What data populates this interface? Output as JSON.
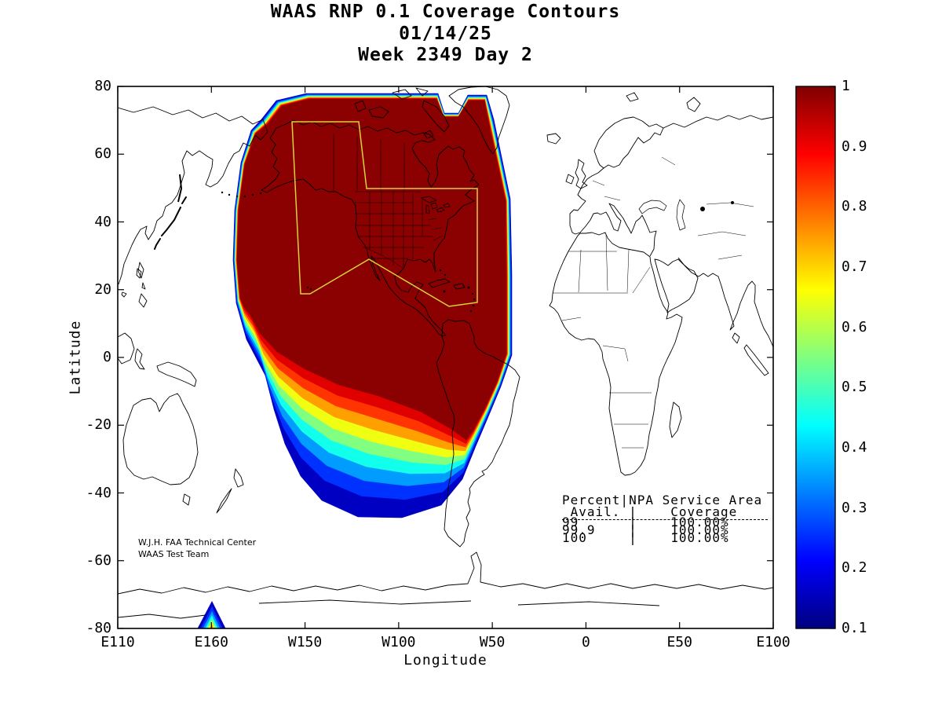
{
  "title": {
    "line1": "WAAS RNP 0.1 Coverage Contours",
    "line2": "01/14/25",
    "line3": "Week 2349 Day 2"
  },
  "annotation": {
    "line1": "W.J.H. FAA Technical Center",
    "line2": "WAAS Test Team"
  },
  "table": {
    "header1": "Percent|NPA Service Area",
    "header2": " Avail. |    Coverage",
    "rows": [
      "99      |    100.00%",
      "99.9    |    100.00%",
      "100     |    100.00%"
    ]
  },
  "chart_data": {
    "type": "heatmap",
    "subtype": "filled contour map of WAAS RNP 0.1 coverage on world map",
    "title": "WAAS RNP 0.1 Coverage Contours",
    "date": "01/14/25",
    "gps_week": "2349",
    "gps_day": "2",
    "xlabel": "Longitude",
    "ylabel": "Latitude",
    "x_tick_labels": [
      "E110",
      "E160",
      "W150",
      "W100",
      "W50",
      "0",
      "E50",
      "E100"
    ],
    "y_tick_labels": [
      "80",
      "60",
      "40",
      "20",
      "0",
      "-20",
      "-40",
      "-60",
      "-80"
    ],
    "ylim": [
      -80,
      80
    ],
    "x_span_degrees": 350,
    "grid": false,
    "colormap": "jet",
    "contour_levels": [
      0.1,
      0.2,
      0.3,
      0.4,
      0.5,
      0.6,
      0.7,
      0.8,
      0.9,
      1.0
    ],
    "band_colors": [
      "#0000C2",
      "#0032FF",
      "#009CFF",
      "#12FFEC",
      "#80FF80",
      "#F0FF12",
      "#FFA000",
      "#FF3400",
      "#E00000",
      "#8B0000"
    ],
    "colorbar": {
      "min": 0.1,
      "max": 1,
      "tick_labels": [
        "1",
        "0.9",
        "0.8",
        "0.7",
        "0.6",
        "0.5",
        "0.4",
        "0.3",
        "0.2",
        "0.1"
      ],
      "gradient_stops": [
        "#000080",
        "#0000FF",
        "#00FFFF",
        "#FFFF00",
        "#FF0000",
        "#800000"
      ],
      "position": "right"
    },
    "coverage_summary": "Coverage ~1.0 (dark red) over Alaska, Canada, CONUS, Mexico and adjacent oceans; bands decay southwest across the Pacific to 0.1 near 45S; small low-coverage feature near the south edge around 165E",
    "service_area_outline": {
      "label": "NPA Service Area",
      "color": "#D6D33A"
    },
    "availability": {
      "percent_avail": [
        "99",
        "99.9",
        "100"
      ],
      "npa_coverage": [
        "100.00%",
        "100.00%",
        "100.00%"
      ]
    }
  }
}
